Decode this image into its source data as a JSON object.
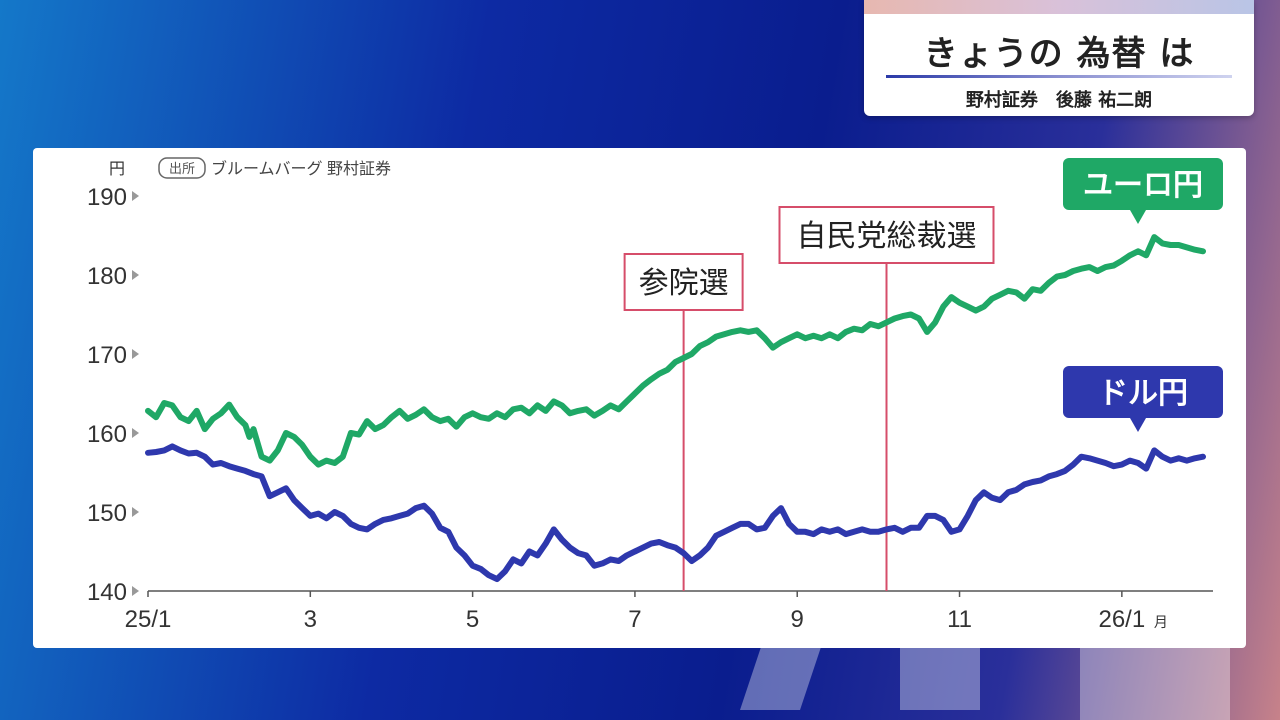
{
  "header": {
    "title": "きょうの 為替 は",
    "subtitle": "野村証券　後藤 祐二朗"
  },
  "colors": {
    "eur": "#1fa866",
    "usd": "#2e38ad",
    "marker": "#d64d6a",
    "axis": "#666666"
  },
  "chart_data": {
    "type": "line",
    "ylabel": "円",
    "source": "ブルームバーグ 野村証券",
    "source_tag": "出所",
    "ylim": [
      140,
      190
    ],
    "yticks": [
      190,
      180,
      170,
      160,
      150,
      140
    ],
    "xlim": [
      0,
      12.6
    ],
    "xticks": [
      {
        "x": 0,
        "label": "25/1"
      },
      {
        "x": 2,
        "label": "3"
      },
      {
        "x": 4,
        "label": "5"
      },
      {
        "x": 6,
        "label": "7"
      },
      {
        "x": 8,
        "label": "9"
      },
      {
        "x": 10,
        "label": "11"
      },
      {
        "x": 12,
        "label": "26/1",
        "suffix": "月"
      }
    ],
    "series": [
      {
        "name": "ユーロ円",
        "color": "#1fa866",
        "points": [
          [
            0,
            162.8
          ],
          [
            0.1,
            162.0
          ],
          [
            0.2,
            163.8
          ],
          [
            0.3,
            163.5
          ],
          [
            0.4,
            162.0
          ],
          [
            0.5,
            161.5
          ],
          [
            0.6,
            162.8
          ],
          [
            0.7,
            160.5
          ],
          [
            0.8,
            161.8
          ],
          [
            0.9,
            162.5
          ],
          [
            1.0,
            163.6
          ],
          [
            1.1,
            162.0
          ],
          [
            1.2,
            161.0
          ],
          [
            1.25,
            159.5
          ],
          [
            1.3,
            160.5
          ],
          [
            1.4,
            157.0
          ],
          [
            1.5,
            156.5
          ],
          [
            1.6,
            157.8
          ],
          [
            1.7,
            160.0
          ],
          [
            1.8,
            159.5
          ],
          [
            1.9,
            158.5
          ],
          [
            2.0,
            157.0
          ],
          [
            2.1,
            156.0
          ],
          [
            2.2,
            156.5
          ],
          [
            2.3,
            156.2
          ],
          [
            2.4,
            157.0
          ],
          [
            2.5,
            160.0
          ],
          [
            2.6,
            159.8
          ],
          [
            2.7,
            161.5
          ],
          [
            2.8,
            160.5
          ],
          [
            2.9,
            161.0
          ],
          [
            3.0,
            162.0
          ],
          [
            3.1,
            162.8
          ],
          [
            3.2,
            161.8
          ],
          [
            3.3,
            162.3
          ],
          [
            3.4,
            163.0
          ],
          [
            3.5,
            162.0
          ],
          [
            3.6,
            161.5
          ],
          [
            3.7,
            161.8
          ],
          [
            3.8,
            160.8
          ],
          [
            3.9,
            162.0
          ],
          [
            4.0,
            162.5
          ],
          [
            4.1,
            162.0
          ],
          [
            4.2,
            161.8
          ],
          [
            4.3,
            162.5
          ],
          [
            4.4,
            162.0
          ],
          [
            4.5,
            163.0
          ],
          [
            4.6,
            163.2
          ],
          [
            4.7,
            162.5
          ],
          [
            4.8,
            163.5
          ],
          [
            4.9,
            162.8
          ],
          [
            5.0,
            164.0
          ],
          [
            5.1,
            163.5
          ],
          [
            5.2,
            162.5
          ],
          [
            5.3,
            162.8
          ],
          [
            5.4,
            163.0
          ],
          [
            5.5,
            162.2
          ],
          [
            5.6,
            162.8
          ],
          [
            5.7,
            163.5
          ],
          [
            5.8,
            163.0
          ],
          [
            5.9,
            164.0
          ],
          [
            6.0,
            165.0
          ],
          [
            6.1,
            166.0
          ],
          [
            6.2,
            166.8
          ],
          [
            6.3,
            167.5
          ],
          [
            6.4,
            168.0
          ],
          [
            6.5,
            169.0
          ],
          [
            6.6,
            169.5
          ],
          [
            6.7,
            170.0
          ],
          [
            6.8,
            171.0
          ],
          [
            6.9,
            171.5
          ],
          [
            7.0,
            172.2
          ],
          [
            7.1,
            172.5
          ],
          [
            7.2,
            172.8
          ],
          [
            7.3,
            173.0
          ],
          [
            7.4,
            172.8
          ],
          [
            7.5,
            173.0
          ],
          [
            7.6,
            172.0
          ],
          [
            7.7,
            170.8
          ],
          [
            7.8,
            171.5
          ],
          [
            7.9,
            172.0
          ],
          [
            8.0,
            172.5
          ],
          [
            8.1,
            172.0
          ],
          [
            8.2,
            172.3
          ],
          [
            8.3,
            172.0
          ],
          [
            8.4,
            172.5
          ],
          [
            8.5,
            172.0
          ],
          [
            8.6,
            172.8
          ],
          [
            8.7,
            173.2
          ],
          [
            8.8,
            173.0
          ],
          [
            8.9,
            173.8
          ],
          [
            9.0,
            173.5
          ],
          [
            9.1,
            174.0
          ],
          [
            9.2,
            174.5
          ],
          [
            9.3,
            174.8
          ],
          [
            9.4,
            175.0
          ],
          [
            9.5,
            174.5
          ],
          [
            9.6,
            172.8
          ],
          [
            9.7,
            174.0
          ],
          [
            9.8,
            176.0
          ],
          [
            9.9,
            177.2
          ],
          [
            10.0,
            176.5
          ],
          [
            10.1,
            176.0
          ],
          [
            10.2,
            175.5
          ],
          [
            10.3,
            176.0
          ],
          [
            10.4,
            177.0
          ],
          [
            10.5,
            177.5
          ],
          [
            10.6,
            178.0
          ],
          [
            10.7,
            177.8
          ],
          [
            10.8,
            177.0
          ],
          [
            10.9,
            178.2
          ],
          [
            11.0,
            178.0
          ],
          [
            11.1,
            179.0
          ],
          [
            11.2,
            179.8
          ],
          [
            11.3,
            180.0
          ],
          [
            11.4,
            180.5
          ],
          [
            11.5,
            180.8
          ],
          [
            11.6,
            181.0
          ],
          [
            11.7,
            180.5
          ],
          [
            11.8,
            181.0
          ],
          [
            11.9,
            181.2
          ],
          [
            12.0,
            181.8
          ],
          [
            12.1,
            182.5
          ],
          [
            12.2,
            183.0
          ],
          [
            12.3,
            182.5
          ],
          [
            12.4,
            184.8
          ],
          [
            12.5,
            184.0
          ],
          [
            12.6,
            183.8
          ],
          [
            12.7,
            183.8
          ],
          [
            12.8,
            183.5
          ],
          [
            12.9,
            183.2
          ],
          [
            13.0,
            183.0
          ]
        ]
      },
      {
        "name": "ドル円",
        "color": "#2e38ad",
        "points": [
          [
            0,
            157.5
          ],
          [
            0.1,
            157.6
          ],
          [
            0.2,
            157.8
          ],
          [
            0.3,
            158.3
          ],
          [
            0.4,
            157.8
          ],
          [
            0.5,
            157.4
          ],
          [
            0.6,
            157.5
          ],
          [
            0.7,
            157.0
          ],
          [
            0.8,
            156.0
          ],
          [
            0.9,
            156.2
          ],
          [
            1.0,
            155.8
          ],
          [
            1.1,
            155.5
          ],
          [
            1.2,
            155.2
          ],
          [
            1.3,
            154.8
          ],
          [
            1.4,
            154.5
          ],
          [
            1.5,
            152.0
          ],
          [
            1.6,
            152.5
          ],
          [
            1.7,
            153.0
          ],
          [
            1.8,
            151.5
          ],
          [
            1.9,
            150.5
          ],
          [
            2.0,
            149.5
          ],
          [
            2.1,
            149.8
          ],
          [
            2.2,
            149.2
          ],
          [
            2.3,
            150.0
          ],
          [
            2.4,
            149.5
          ],
          [
            2.5,
            148.5
          ],
          [
            2.6,
            148.0
          ],
          [
            2.7,
            147.8
          ],
          [
            2.8,
            148.5
          ],
          [
            2.9,
            149.0
          ],
          [
            3.0,
            149.2
          ],
          [
            3.1,
            149.5
          ],
          [
            3.2,
            149.8
          ],
          [
            3.3,
            150.5
          ],
          [
            3.4,
            150.8
          ],
          [
            3.5,
            149.8
          ],
          [
            3.6,
            148.0
          ],
          [
            3.7,
            147.5
          ],
          [
            3.8,
            145.5
          ],
          [
            3.9,
            144.5
          ],
          [
            4.0,
            143.2
          ],
          [
            4.1,
            142.8
          ],
          [
            4.2,
            142.0
          ],
          [
            4.3,
            141.5
          ],
          [
            4.4,
            142.5
          ],
          [
            4.5,
            144.0
          ],
          [
            4.6,
            143.5
          ],
          [
            4.7,
            145.0
          ],
          [
            4.8,
            144.5
          ],
          [
            4.9,
            146.0
          ],
          [
            5.0,
            147.8
          ],
          [
            5.1,
            146.5
          ],
          [
            5.2,
            145.5
          ],
          [
            5.3,
            144.8
          ],
          [
            5.4,
            144.5
          ],
          [
            5.5,
            143.2
          ],
          [
            5.6,
            143.5
          ],
          [
            5.7,
            144.0
          ],
          [
            5.8,
            143.8
          ],
          [
            5.9,
            144.5
          ],
          [
            6.0,
            145.0
          ],
          [
            6.1,
            145.5
          ],
          [
            6.2,
            146.0
          ],
          [
            6.3,
            146.2
          ],
          [
            6.4,
            145.8
          ],
          [
            6.5,
            145.5
          ],
          [
            6.6,
            144.8
          ],
          [
            6.7,
            143.8
          ],
          [
            6.8,
            144.5
          ],
          [
            6.9,
            145.5
          ],
          [
            7.0,
            147.0
          ],
          [
            7.1,
            147.5
          ],
          [
            7.2,
            148.0
          ],
          [
            7.3,
            148.5
          ],
          [
            7.4,
            148.5
          ],
          [
            7.5,
            147.8
          ],
          [
            7.6,
            148.0
          ],
          [
            7.7,
            149.5
          ],
          [
            7.8,
            150.5
          ],
          [
            7.9,
            148.5
          ],
          [
            8.0,
            147.5
          ],
          [
            8.1,
            147.5
          ],
          [
            8.2,
            147.2
          ],
          [
            8.3,
            147.8
          ],
          [
            8.4,
            147.5
          ],
          [
            8.5,
            147.8
          ],
          [
            8.6,
            147.2
          ],
          [
            8.7,
            147.5
          ],
          [
            8.8,
            147.8
          ],
          [
            8.9,
            147.5
          ],
          [
            9.0,
            147.5
          ],
          [
            9.1,
            147.8
          ],
          [
            9.2,
            148.0
          ],
          [
            9.3,
            147.5
          ],
          [
            9.4,
            148.0
          ],
          [
            9.5,
            148.0
          ],
          [
            9.6,
            149.5
          ],
          [
            9.7,
            149.5
          ],
          [
            9.8,
            149.0
          ],
          [
            9.9,
            147.5
          ],
          [
            10.0,
            147.8
          ],
          [
            10.1,
            149.5
          ],
          [
            10.2,
            151.5
          ],
          [
            10.3,
            152.5
          ],
          [
            10.4,
            151.8
          ],
          [
            10.5,
            151.5
          ],
          [
            10.6,
            152.5
          ],
          [
            10.7,
            152.8
          ],
          [
            10.8,
            153.5
          ],
          [
            10.9,
            153.8
          ],
          [
            11.0,
            154.0
          ],
          [
            11.1,
            154.5
          ],
          [
            11.2,
            154.8
          ],
          [
            11.3,
            155.2
          ],
          [
            11.4,
            156.0
          ],
          [
            11.5,
            157.0
          ],
          [
            11.6,
            156.8
          ],
          [
            11.7,
            156.5
          ],
          [
            11.8,
            156.2
          ],
          [
            11.9,
            155.8
          ],
          [
            12.0,
            156.0
          ],
          [
            12.1,
            156.5
          ],
          [
            12.2,
            156.2
          ],
          [
            12.3,
            155.5
          ],
          [
            12.4,
            157.8
          ],
          [
            12.5,
            157.0
          ],
          [
            12.6,
            156.5
          ],
          [
            12.7,
            156.8
          ],
          [
            12.8,
            156.5
          ],
          [
            12.9,
            156.8
          ],
          [
            13.0,
            157.0
          ]
        ]
      }
    ],
    "annotations": [
      {
        "label": "参院選",
        "x": 6.6
      },
      {
        "label": "自民党総裁選",
        "x": 9.1
      }
    ],
    "callouts": [
      {
        "label": "ユーロ円",
        "series": 0
      },
      {
        "label": "ドル円",
        "series": 1
      }
    ]
  }
}
